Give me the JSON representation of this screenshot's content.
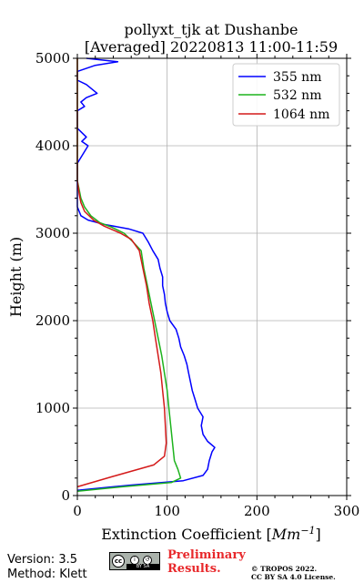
{
  "chart_data": {
    "type": "line",
    "title": "pollyxt_tjk at Dushanbe",
    "subtitle": "[Averaged] 20220813 11:00-11:59",
    "xlabel": "Extinction Coefficient [",
    "xlabel_unit": "Mm",
    "xlabel_exp": "−1",
    "xlabel_close": "]",
    "ylabel": "Height (m)",
    "xlim": [
      0,
      300
    ],
    "ylim": [
      0,
      5000
    ],
    "xticks": [
      0,
      100,
      200,
      300
    ],
    "yticks": [
      0,
      1000,
      2000,
      3000,
      4000,
      5000
    ],
    "xtick_labels": [
      "0",
      "100",
      "200",
      "300"
    ],
    "ytick_labels": [
      "0",
      "1000",
      "2000",
      "3000",
      "4000",
      "5000"
    ],
    "grid": true,
    "legend_position": "top-right",
    "series": [
      {
        "name": "355 nm",
        "color": "#0000ff",
        "points": [
          [
            0,
            60
          ],
          [
            60,
            120
          ],
          [
            118,
            170
          ],
          [
            140,
            230
          ],
          [
            145,
            300
          ],
          [
            147,
            400
          ],
          [
            150,
            500
          ],
          [
            153,
            550
          ],
          [
            145,
            620
          ],
          [
            140,
            700
          ],
          [
            138,
            800
          ],
          [
            140,
            900
          ],
          [
            134,
            1000
          ],
          [
            131,
            1100
          ],
          [
            128,
            1200
          ],
          [
            126,
            1300
          ],
          [
            124,
            1400
          ],
          [
            122,
            1500
          ],
          [
            119,
            1600
          ],
          [
            115,
            1700
          ],
          [
            113,
            1800
          ],
          [
            110,
            1900
          ],
          [
            103,
            2000
          ],
          [
            100,
            2100
          ],
          [
            98,
            2200
          ],
          [
            97,
            2300
          ],
          [
            95,
            2400
          ],
          [
            95,
            2500
          ],
          [
            92,
            2600
          ],
          [
            90,
            2700
          ],
          [
            84,
            2800
          ],
          [
            79,
            2900
          ],
          [
            73,
            3000
          ],
          [
            57,
            3050
          ],
          [
            30,
            3100
          ],
          [
            12,
            3150
          ],
          [
            4,
            3200
          ],
          [
            2,
            3250
          ],
          [
            0,
            3300
          ],
          [
            0,
            3400
          ],
          [
            0,
            3600
          ],
          [
            0,
            3800
          ],
          [
            6,
            3900
          ],
          [
            12,
            4000
          ],
          [
            5,
            4050
          ],
          [
            10,
            4100
          ],
          [
            0,
            4200
          ],
          [
            0,
            4300
          ],
          [
            0,
            4400
          ],
          [
            8,
            4450
          ],
          [
            4,
            4500
          ],
          [
            10,
            4550
          ],
          [
            22,
            4600
          ],
          [
            10,
            4700
          ],
          [
            0,
            4750
          ],
          [
            0,
            4850
          ],
          [
            20,
            4920
          ],
          [
            45,
            4960
          ],
          [
            10,
            5000
          ]
        ]
      },
      {
        "name": "532 nm",
        "color": "#1db31d",
        "points": [
          [
            0,
            50
          ],
          [
            50,
            100
          ],
          [
            105,
            150
          ],
          [
            115,
            200
          ],
          [
            112,
            300
          ],
          [
            108,
            400
          ],
          [
            106,
            600
          ],
          [
            104,
            800
          ],
          [
            102,
            1000
          ],
          [
            100,
            1200
          ],
          [
            97,
            1400
          ],
          [
            94,
            1600
          ],
          [
            90,
            1800
          ],
          [
            86,
            2000
          ],
          [
            82,
            2200
          ],
          [
            78,
            2400
          ],
          [
            74,
            2600
          ],
          [
            71,
            2800
          ],
          [
            62,
            2900
          ],
          [
            52,
            3000
          ],
          [
            38,
            3070
          ],
          [
            25,
            3120
          ],
          [
            15,
            3200
          ],
          [
            8,
            3300
          ],
          [
            4,
            3400
          ],
          [
            2,
            3500
          ],
          [
            0,
            3600
          ],
          [
            0,
            4000
          ],
          [
            0,
            4300
          ],
          [
            0,
            4800
          ],
          [
            0,
            5000
          ]
        ]
      },
      {
        "name": "1064 nm",
        "color": "#d41a1a",
        "points": [
          [
            0,
            100
          ],
          [
            40,
            220
          ],
          [
            85,
            350
          ],
          [
            97,
            450
          ],
          [
            99,
            600
          ],
          [
            98,
            800
          ],
          [
            97,
            1000
          ],
          [
            95,
            1200
          ],
          [
            93,
            1400
          ],
          [
            90,
            1600
          ],
          [
            87,
            1800
          ],
          [
            84,
            2000
          ],
          [
            80,
            2200
          ],
          [
            77,
            2400
          ],
          [
            73,
            2600
          ],
          [
            69,
            2800
          ],
          [
            60,
            2930
          ],
          [
            48,
            3000
          ],
          [
            30,
            3080
          ],
          [
            18,
            3150
          ],
          [
            8,
            3250
          ],
          [
            4,
            3350
          ],
          [
            2,
            3450
          ],
          [
            0,
            3600
          ],
          [
            0,
            4000
          ],
          [
            0,
            4400
          ],
          [
            0,
            5000
          ]
        ]
      }
    ]
  },
  "footer": {
    "version": "Version: 3.5",
    "method": "Method: Klett",
    "preliminary": "Preliminary Results.",
    "copyright_line1": "© TROPOS 2022.",
    "copyright_line2": "CC BY SA 4.0 License.",
    "cc_badge": {
      "main": "cc",
      "mini1": "i",
      "mini2": "↺",
      "strip": "BY  SA"
    }
  }
}
